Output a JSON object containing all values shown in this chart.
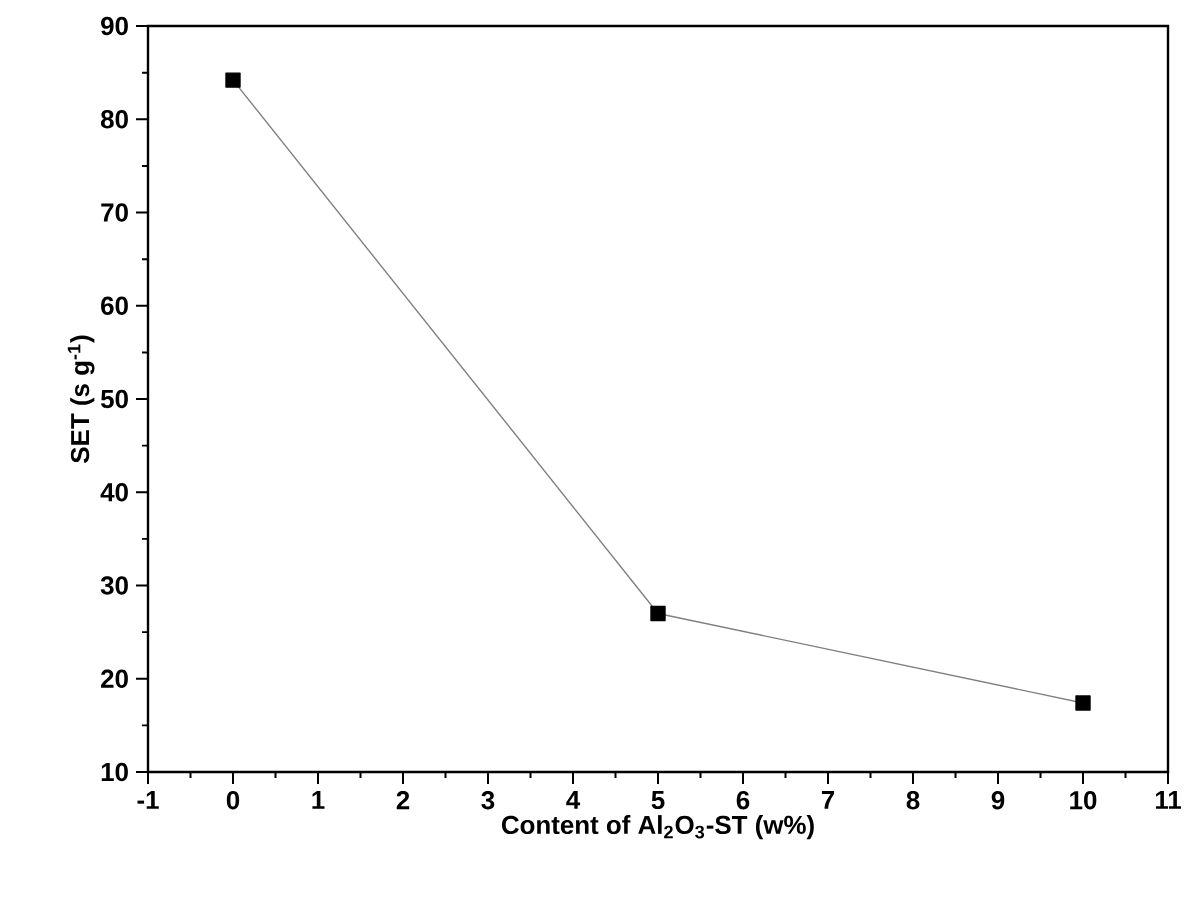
{
  "chart_data": {
    "type": "line",
    "xlabel": "**Content of Al$_{2}$O$_{3}$-ST (w%)**",
    "ylabel": "**SET (s g$^{-1}$)**",
    "x": [
      0,
      5,
      10
    ],
    "series": [
      {
        "color": "#808080",
        "values": [
          84.2,
          27.0,
          17.4
        ]
      }
    ],
    "marker": "square",
    "line_style": "solid",
    "grid": false,
    "xlim": [
      -1,
      11
    ],
    "xticks": [
      -1,
      0,
      1,
      2,
      3,
      4,
      5,
      6,
      7,
      8,
      9,
      10,
      11
    ],
    "ylim": [
      10,
      90
    ],
    "yticks": [
      10,
      20,
      30,
      40,
      50,
      60,
      70,
      80,
      90
    ]
  }
}
